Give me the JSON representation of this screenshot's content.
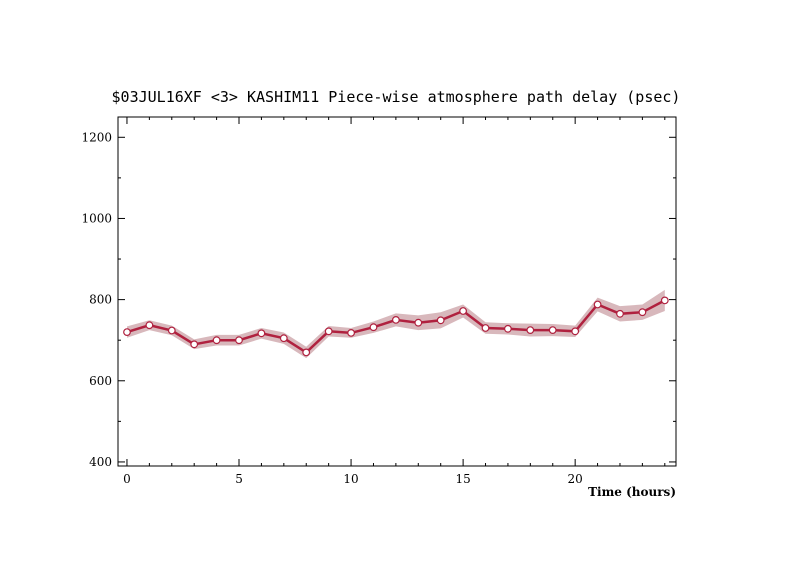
{
  "chart_data": {
    "type": "line",
    "title": "$03JUL16XF <3>  KASHIM11  Piece-wise atmosphere path delay (psec)",
    "xlabel": "Time (hours)",
    "ylabel": "",
    "xlim": [
      -0.4,
      24.5
    ],
    "ylim": [
      390,
      1250
    ],
    "x_ticks": [
      0,
      5,
      10,
      15,
      20
    ],
    "y_ticks": [
      400,
      600,
      800,
      1000,
      1200
    ],
    "grid": false,
    "legend": "none",
    "colors": {
      "line": "#b0213f",
      "band": "#d8b8bc",
      "marker_fill": "#ffffff"
    },
    "series": [
      {
        "x": [
          0,
          1,
          2,
          3,
          4,
          5,
          6,
          7,
          8,
          9,
          10,
          11,
          12,
          13,
          14,
          15,
          16,
          17,
          18,
          19,
          20,
          21,
          22,
          23,
          24
        ],
        "values": [
          720,
          737,
          724,
          690,
          700,
          700,
          717,
          705,
          670,
          722,
          718,
          732,
          750,
          743,
          749,
          772,
          730,
          728,
          725,
          725,
          722,
          788,
          765,
          769,
          798
        ],
        "error": [
          14,
          12,
          12,
          12,
          13,
          13,
          13,
          14,
          14,
          13,
          12,
          14,
          16,
          18,
          20,
          16,
          14,
          14,
          16,
          15,
          14,
          17,
          19,
          19,
          26
        ]
      }
    ]
  }
}
